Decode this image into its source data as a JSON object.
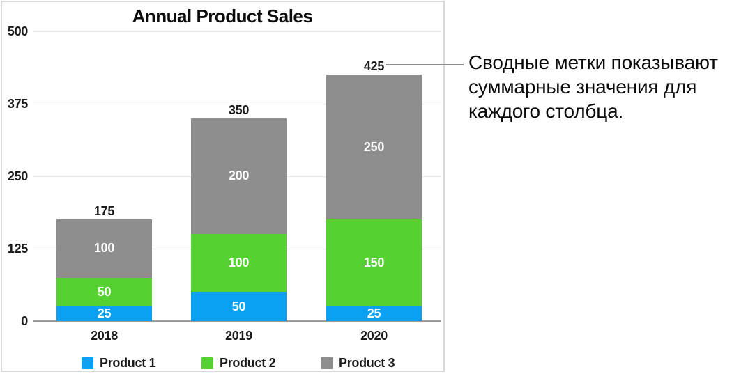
{
  "chart_data": {
    "type": "bar",
    "stacked": true,
    "title": "Annual Product Sales",
    "categories": [
      "2018",
      "2019",
      "2020"
    ],
    "series": [
      {
        "name": "Product 1",
        "color": "#0aa1f2",
        "values": [
          25,
          50,
          25
        ]
      },
      {
        "name": "Product 2",
        "color": "#55d232",
        "values": [
          50,
          100,
          150
        ]
      },
      {
        "name": "Product 3",
        "color": "#8e8e8e",
        "values": [
          100,
          200,
          250
        ]
      }
    ],
    "totals": [
      175,
      350,
      425
    ],
    "y_ticks": [
      0,
      125,
      250,
      375,
      500
    ],
    "ylim": [
      0,
      500
    ],
    "grid": true,
    "legend_position": "bottom",
    "bar_label_color": "#ffffff",
    "total_label_color": "#1b1b1b",
    "leader_line_color": "#8e8e8e"
  },
  "callout": {
    "text": "Сводные метки показывают\nсуммарные значения для\nкаждого столбца."
  }
}
